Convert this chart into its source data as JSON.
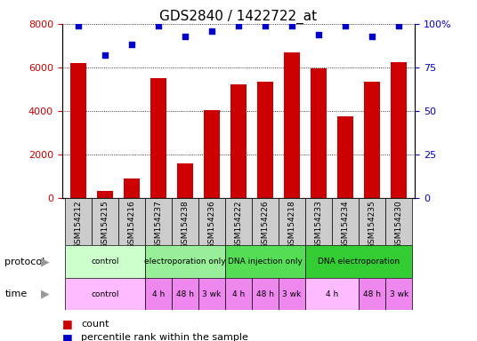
{
  "title": "GDS2840 / 1422722_at",
  "samples": [
    "GSM154212",
    "GSM154215",
    "GSM154216",
    "GSM154237",
    "GSM154238",
    "GSM154236",
    "GSM154222",
    "GSM154226",
    "GSM154218",
    "GSM154233",
    "GSM154234",
    "GSM154235",
    "GSM154230"
  ],
  "counts": [
    6200,
    300,
    900,
    5500,
    1600,
    4050,
    5200,
    5350,
    6700,
    5950,
    3750,
    5350,
    6250
  ],
  "percentile": [
    99,
    82,
    88,
    99,
    93,
    96,
    99,
    99,
    99,
    94,
    99,
    93,
    99
  ],
  "bar_color": "#cc0000",
  "dot_color": "#0000cc",
  "ylim_left": [
    0,
    8000
  ],
  "ylim_right": [
    0,
    100
  ],
  "yticks_left": [
    0,
    2000,
    4000,
    6000,
    8000
  ],
  "yticks_right": [
    0,
    25,
    50,
    75,
    100
  ],
  "protocol_row": [
    {
      "label": "control",
      "start": 0,
      "end": 3,
      "color": "#ccffcc"
    },
    {
      "label": "electroporation only",
      "start": 3,
      "end": 6,
      "color": "#99ee99"
    },
    {
      "label": "DNA injection only",
      "start": 6,
      "end": 9,
      "color": "#55dd55"
    },
    {
      "label": "DNA electroporation",
      "start": 9,
      "end": 13,
      "color": "#33cc33"
    }
  ],
  "time_row": [
    {
      "label": "control",
      "start": 0,
      "end": 3,
      "color": "#ffbbff"
    },
    {
      "label": "4 h",
      "start": 3,
      "end": 4,
      "color": "#ee88ee"
    },
    {
      "label": "48 h",
      "start": 4,
      "end": 5,
      "color": "#ee88ee"
    },
    {
      "label": "3 wk",
      "start": 5,
      "end": 6,
      "color": "#ee88ee"
    },
    {
      "label": "4 h",
      "start": 6,
      "end": 7,
      "color": "#ee88ee"
    },
    {
      "label": "48 h",
      "start": 7,
      "end": 8,
      "color": "#ee88ee"
    },
    {
      "label": "3 wk",
      "start": 8,
      "end": 9,
      "color": "#ee88ee"
    },
    {
      "label": "4 h",
      "start": 9,
      "end": 11,
      "color": "#ffbbff"
    },
    {
      "label": "48 h",
      "start": 11,
      "end": 12,
      "color": "#ee88ee"
    },
    {
      "label": "3 wk",
      "start": 12,
      "end": 13,
      "color": "#ee88ee"
    }
  ],
  "sample_bg": "#cccccc",
  "legend_count_color": "#cc0000",
  "legend_dot_color": "#0000cc",
  "tick_label_color_left": "#cc0000",
  "tick_label_color_right": "#0000cc"
}
